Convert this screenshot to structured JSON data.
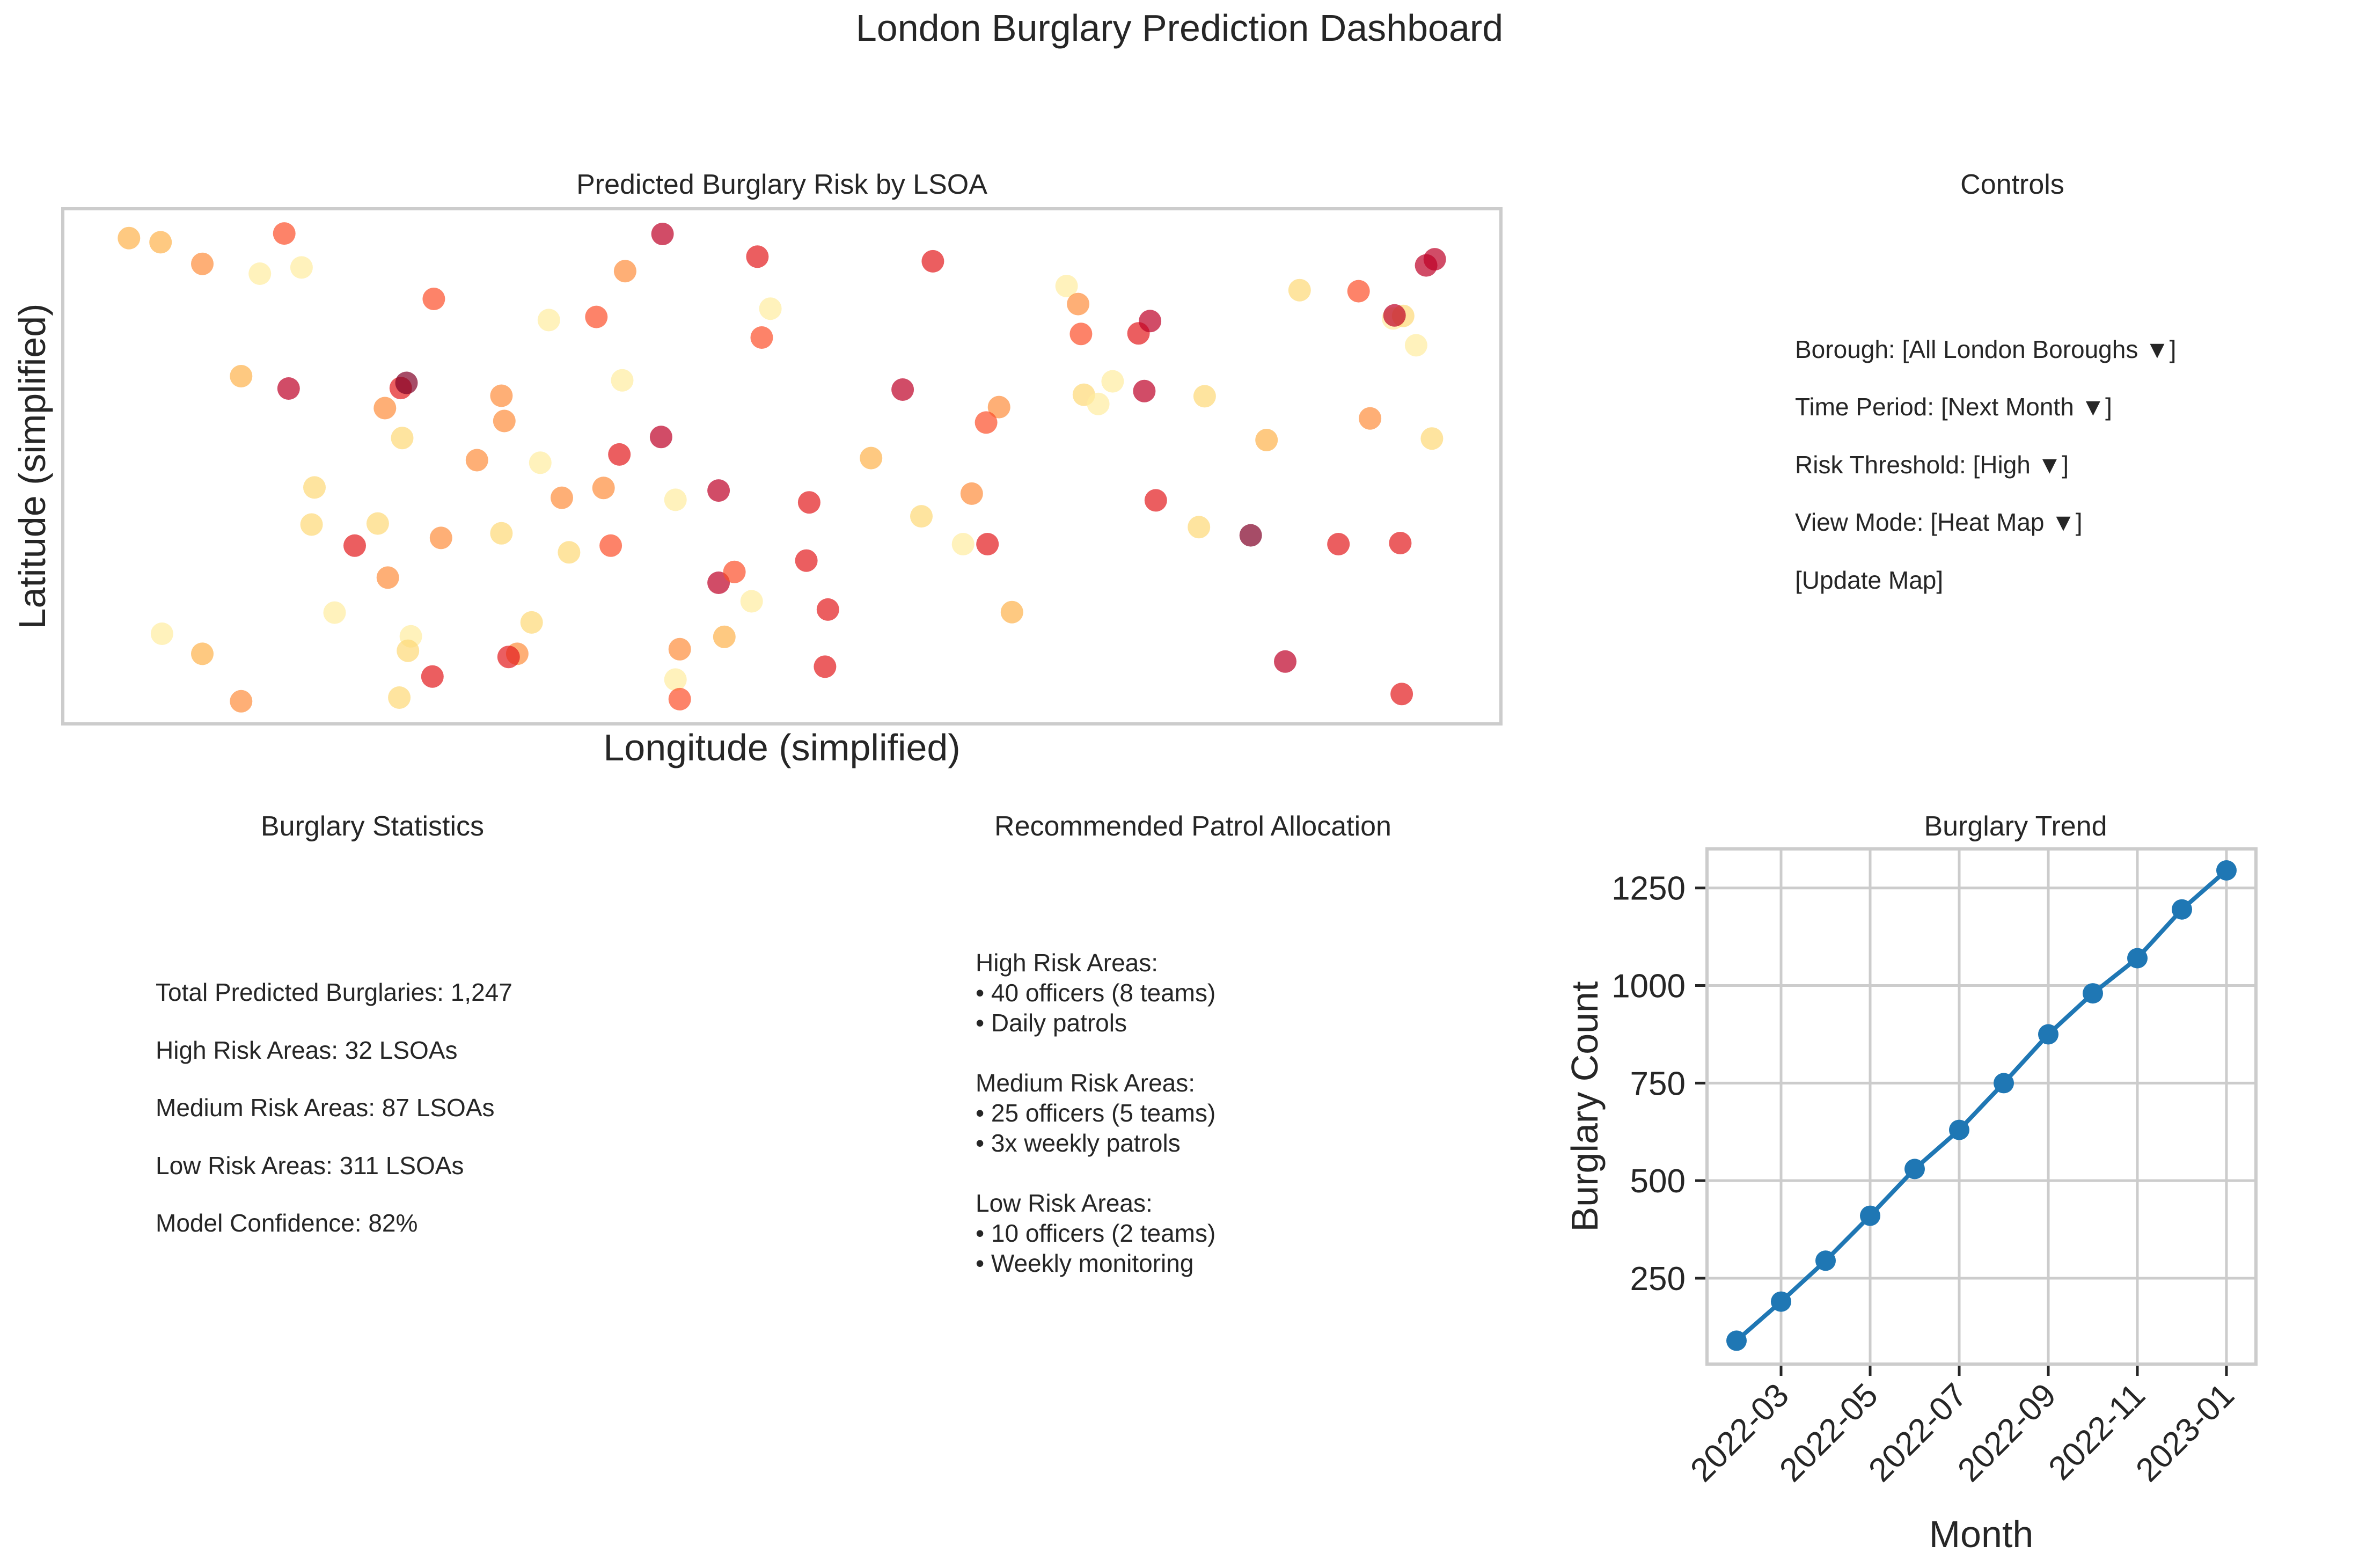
{
  "dashboard": {
    "title": "London Burglary Prediction Dashboard"
  },
  "risk_map": {
    "title": "Predicted Burglary Risk by LSOA",
    "xlabel": "Longitude (simplified)",
    "ylabel": "Latitude (simplified)"
  },
  "controls": {
    "title": "Controls",
    "items": [
      "Borough: [All London Boroughs ▼]",
      "Time Period: [Next Month ▼]",
      "Risk Threshold: [High ▼]",
      "View Mode: [Heat Map ▼]",
      "[Update Map]"
    ]
  },
  "statistics": {
    "title": "Burglary Statistics",
    "items": [
      "Total Predicted Burglaries: 1,247",
      "High Risk Areas: 32 LSOAs",
      "Medium Risk Areas: 87 LSOAs",
      "Low Risk Areas: 311 LSOAs",
      "Model Confidence: 82%"
    ]
  },
  "patrol": {
    "title": "Recommended Patrol Allocation",
    "text": "High Risk Areas:\n• 40 officers (8 teams)\n• Daily patrols\n\nMedium Risk Areas:\n• 25 officers (5 teams)\n• 3x weekly patrols\n\nLow Risk Areas:\n• 10 officers (2 teams)\n• Weekly monitoring"
  },
  "trend": {
    "title": "Burglary Trend",
    "xlabel": "Month",
    "ylabel": "Burglary Count"
  },
  "colors": {
    "line": "#1f77b4",
    "grid": "#cccccc",
    "frame": "#cccccc",
    "risk_scale": [
      "#ffffcc",
      "#ffeda0",
      "#fed976",
      "#feb24c",
      "#fd8d3c",
      "#fc4e2a",
      "#e31a1c",
      "#bd0026",
      "#800026"
    ]
  },
  "chart_data": [
    {
      "type": "scatter",
      "title": "Predicted Burglary Risk by LSOA",
      "xlabel": "Longitude (simplified)",
      "ylabel": "Latitude (simplified)",
      "xlim": [
        0,
        100
      ],
      "ylim": [
        0,
        100
      ],
      "grid": false,
      "points": [
        {
          "x": 4.6,
          "y": 94.3,
          "risk": 0.33
        },
        {
          "x": 6.8,
          "y": 93.5,
          "risk": 0.36
        },
        {
          "x": 9.7,
          "y": 89.3,
          "risk": 0.55
        },
        {
          "x": 13.7,
          "y": 87.4,
          "risk": 0.08
        },
        {
          "x": 16.6,
          "y": 88.6,
          "risk": 0.15
        },
        {
          "x": 15.4,
          "y": 95.2,
          "risk": 0.62
        },
        {
          "x": 41.7,
          "y": 95.1,
          "risk": 0.82
        },
        {
          "x": 48.3,
          "y": 90.7,
          "risk": 0.78
        },
        {
          "x": 60.5,
          "y": 89.8,
          "risk": 0.72
        },
        {
          "x": 86.0,
          "y": 84.2,
          "risk": 0.2
        },
        {
          "x": 90.1,
          "y": 84.0,
          "risk": 0.65
        },
        {
          "x": 95.4,
          "y": 90.2,
          "risk": 0.92
        },
        {
          "x": 94.8,
          "y": 89.0,
          "risk": 0.9
        },
        {
          "x": 69.8,
          "y": 85.0,
          "risk": 0.15
        },
        {
          "x": 70.6,
          "y": 81.5,
          "risk": 0.45
        },
        {
          "x": 39.1,
          "y": 87.9,
          "risk": 0.5
        },
        {
          "x": 25.8,
          "y": 82.5,
          "risk": 0.62
        },
        {
          "x": 33.8,
          "y": 78.4,
          "risk": 0.08
        },
        {
          "x": 37.1,
          "y": 79.0,
          "risk": 0.6
        },
        {
          "x": 49.2,
          "y": 80.6,
          "risk": 0.1
        },
        {
          "x": 48.6,
          "y": 75.0,
          "risk": 0.62
        },
        {
          "x": 70.8,
          "y": 75.7,
          "risk": 0.65
        },
        {
          "x": 74.8,
          "y": 75.8,
          "risk": 0.75
        },
        {
          "x": 75.6,
          "y": 78.2,
          "risk": 0.82
        },
        {
          "x": 92.5,
          "y": 78.7,
          "risk": 0.12
        },
        {
          "x": 93.2,
          "y": 79.2,
          "risk": 0.22
        },
        {
          "x": 92.6,
          "y": 79.3,
          "risk": 0.88
        },
        {
          "x": 94.1,
          "y": 73.5,
          "risk": 0.1
        },
        {
          "x": 12.4,
          "y": 67.5,
          "risk": 0.4
        },
        {
          "x": 15.7,
          "y": 65.1,
          "risk": 0.9
        },
        {
          "x": 23.5,
          "y": 65.2,
          "risk": 0.8
        },
        {
          "x": 23.9,
          "y": 66.2,
          "risk": 0.95
        },
        {
          "x": 22.4,
          "y": 61.3,
          "risk": 0.5
        },
        {
          "x": 30.5,
          "y": 63.7,
          "risk": 0.55
        },
        {
          "x": 30.7,
          "y": 58.8,
          "risk": 0.45
        },
        {
          "x": 38.9,
          "y": 66.7,
          "risk": 0.15
        },
        {
          "x": 58.4,
          "y": 64.9,
          "risk": 0.85
        },
        {
          "x": 65.1,
          "y": 61.5,
          "risk": 0.55
        },
        {
          "x": 64.2,
          "y": 58.5,
          "risk": 0.68
        },
        {
          "x": 71.0,
          "y": 63.9,
          "risk": 0.2
        },
        {
          "x": 72.0,
          "y": 62.1,
          "risk": 0.12
        },
        {
          "x": 73.0,
          "y": 66.5,
          "risk": 0.15
        },
        {
          "x": 75.2,
          "y": 64.6,
          "risk": 0.88
        },
        {
          "x": 79.4,
          "y": 63.6,
          "risk": 0.28
        },
        {
          "x": 83.7,
          "y": 55.1,
          "risk": 0.35
        },
        {
          "x": 90.9,
          "y": 59.3,
          "risk": 0.45
        },
        {
          "x": 95.2,
          "y": 55.4,
          "risk": 0.25
        },
        {
          "x": 23.6,
          "y": 55.5,
          "risk": 0.3
        },
        {
          "x": 28.8,
          "y": 51.2,
          "risk": 0.45
        },
        {
          "x": 33.2,
          "y": 50.7,
          "risk": 0.18
        },
        {
          "x": 38.7,
          "y": 52.3,
          "risk": 0.7
        },
        {
          "x": 41.6,
          "y": 55.7,
          "risk": 0.82
        },
        {
          "x": 56.2,
          "y": 51.6,
          "risk": 0.42
        },
        {
          "x": 17.5,
          "y": 45.9,
          "risk": 0.22
        },
        {
          "x": 17.3,
          "y": 38.7,
          "risk": 0.2
        },
        {
          "x": 20.3,
          "y": 34.6,
          "risk": 0.78
        },
        {
          "x": 21.9,
          "y": 38.9,
          "risk": 0.2
        },
        {
          "x": 26.3,
          "y": 36.1,
          "risk": 0.45
        },
        {
          "x": 30.5,
          "y": 37.0,
          "risk": 0.2
        },
        {
          "x": 34.7,
          "y": 43.9,
          "risk": 0.45
        },
        {
          "x": 35.2,
          "y": 33.3,
          "risk": 0.25
        },
        {
          "x": 37.6,
          "y": 45.8,
          "risk": 0.55
        },
        {
          "x": 38.1,
          "y": 34.6,
          "risk": 0.65
        },
        {
          "x": 42.6,
          "y": 43.5,
          "risk": 0.15
        },
        {
          "x": 45.6,
          "y": 45.3,
          "risk": 0.92
        },
        {
          "x": 51.9,
          "y": 43.0,
          "risk": 0.72
        },
        {
          "x": 59.7,
          "y": 40.3,
          "risk": 0.2
        },
        {
          "x": 63.2,
          "y": 44.7,
          "risk": 0.55
        },
        {
          "x": 62.6,
          "y": 34.9,
          "risk": 0.12
        },
        {
          "x": 64.3,
          "y": 34.9,
          "risk": 0.75
        },
        {
          "x": 66.0,
          "y": 21.7,
          "risk": 0.35
        },
        {
          "x": 79.0,
          "y": 38.2,
          "risk": 0.2
        },
        {
          "x": 82.6,
          "y": 36.6,
          "risk": 0.95
        },
        {
          "x": 76.0,
          "y": 43.4,
          "risk": 0.78
        },
        {
          "x": 88.7,
          "y": 34.9,
          "risk": 0.75
        },
        {
          "x": 93.0,
          "y": 35.1,
          "risk": 0.75
        },
        {
          "x": 22.6,
          "y": 28.4,
          "risk": 0.45
        },
        {
          "x": 18.9,
          "y": 21.6,
          "risk": 0.1
        },
        {
          "x": 45.6,
          "y": 27.4,
          "risk": 0.92
        },
        {
          "x": 46.7,
          "y": 29.5,
          "risk": 0.6
        },
        {
          "x": 47.9,
          "y": 23.8,
          "risk": 0.18
        },
        {
          "x": 51.7,
          "y": 31.7,
          "risk": 0.7
        },
        {
          "x": 53.2,
          "y": 22.2,
          "risk": 0.75
        },
        {
          "x": 6.9,
          "y": 17.5,
          "risk": 0.08
        },
        {
          "x": 9.7,
          "y": 13.6,
          "risk": 0.4
        },
        {
          "x": 12.4,
          "y": 4.4,
          "risk": 0.45
        },
        {
          "x": 24.2,
          "y": 17.0,
          "risk": 0.15
        },
        {
          "x": 24.0,
          "y": 14.2,
          "risk": 0.25
        },
        {
          "x": 23.4,
          "y": 5.1,
          "risk": 0.25
        },
        {
          "x": 25.7,
          "y": 9.2,
          "risk": 0.78
        },
        {
          "x": 31.6,
          "y": 13.6,
          "risk": 0.55
        },
        {
          "x": 31.0,
          "y": 13.0,
          "risk": 0.8
        },
        {
          "x": 32.6,
          "y": 19.7,
          "risk": 0.3
        },
        {
          "x": 42.9,
          "y": 14.5,
          "risk": 0.45
        },
        {
          "x": 42.6,
          "y": 8.6,
          "risk": 0.18
        },
        {
          "x": 42.9,
          "y": 4.8,
          "risk": 0.6
        },
        {
          "x": 46.0,
          "y": 16.9,
          "risk": 0.35
        },
        {
          "x": 53.0,
          "y": 11.1,
          "risk": 0.78
        },
        {
          "x": 85.0,
          "y": 12.1,
          "risk": 0.85
        },
        {
          "x": 93.1,
          "y": 5.8,
          "risk": 0.7
        }
      ]
    },
    {
      "type": "line",
      "title": "Burglary Trend",
      "xlabel": "Month",
      "ylabel": "Burglary Count",
      "x": [
        "2022-02",
        "2022-03",
        "2022-04",
        "2022-05",
        "2022-06",
        "2022-07",
        "2022-08",
        "2022-09",
        "2022-10",
        "2022-11",
        "2022-12",
        "2023-01"
      ],
      "x_ticks": [
        "2022-03",
        "2022-05",
        "2022-07",
        "2022-09",
        "2022-11",
        "2023-01"
      ],
      "y_ticks": [
        250,
        500,
        750,
        1000,
        1250
      ],
      "ylim": [
        30,
        1350
      ],
      "grid": true,
      "series": [
        {
          "values": [
            90,
            190,
            295,
            410,
            530,
            630,
            750,
            875,
            980,
            1070,
            1195,
            1295
          ]
        }
      ]
    }
  ]
}
